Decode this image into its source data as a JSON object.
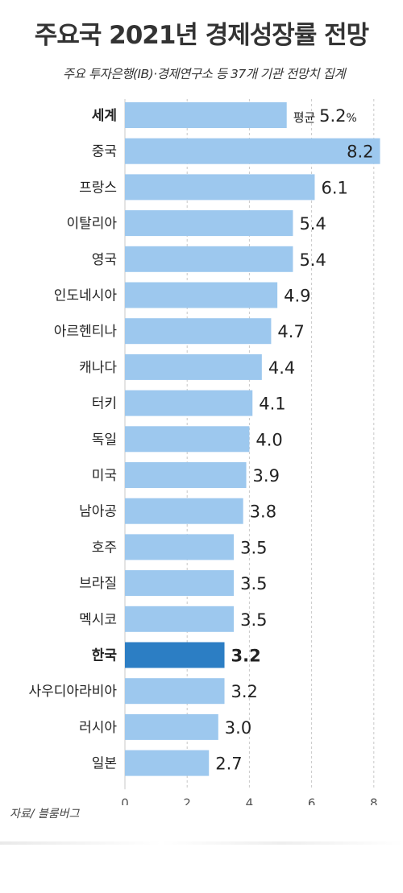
{
  "title": "주요국 2021년 경제성장률 전망",
  "subtitle": "주요 투자은행(IB)·경제연구소 등 37개 기관 전망치 집계",
  "source": "자료/ 블룸버그",
  "chart_data": {
    "type": "bar",
    "orientation": "horizontal",
    "categories": [
      "세계",
      "중국",
      "프랑스",
      "이탈리아",
      "영국",
      "인도네시아",
      "아르헨티나",
      "캐나다",
      "터키",
      "독일",
      "미국",
      "남아공",
      "호주",
      "브라질",
      "멕시코",
      "한국",
      "사우디아라비아",
      "러시아",
      "일본"
    ],
    "values": [
      5.2,
      8.2,
      6.1,
      5.4,
      5.4,
      4.9,
      4.7,
      4.4,
      4.1,
      4.0,
      3.9,
      3.8,
      3.5,
      3.5,
      3.5,
      3.2,
      3.2,
      3.0,
      2.7
    ],
    "value_labels": [
      "5.2",
      "8.2",
      "6.1",
      "5.4",
      "5.4",
      "4.9",
      "4.7",
      "4.4",
      "4.1",
      "4.0",
      "3.9",
      "3.8",
      "3.5",
      "3.5",
      "3.5",
      "3.2",
      "3.2",
      "3.0",
      "2.7"
    ],
    "first_label_prefix": "평균",
    "first_label_suffix": "%",
    "bold_categories": [
      "세계",
      "한국"
    ],
    "highlight_category": "한국",
    "xlim": [
      0,
      8.2
    ],
    "xticks": [
      "0",
      "2",
      "4",
      "6",
      "8"
    ],
    "grid": true,
    "colors": {
      "bar": "#9dc8ee",
      "highlight": "#2c7ec4",
      "grid": "#c8c8c8",
      "text": "#222222"
    }
  }
}
